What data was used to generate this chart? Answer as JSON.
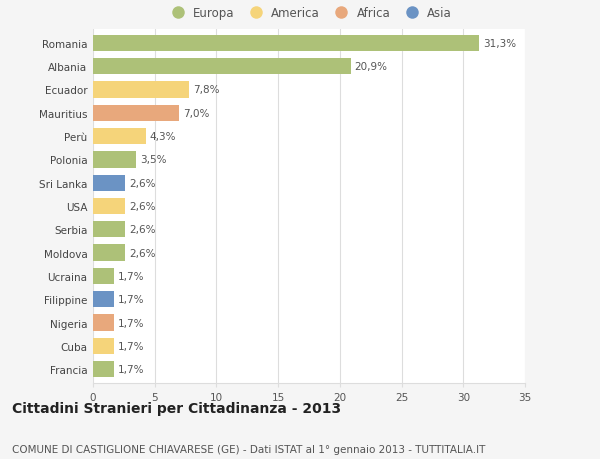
{
  "countries": [
    "Francia",
    "Cuba",
    "Nigeria",
    "Filippine",
    "Ucraina",
    "Moldova",
    "Serbia",
    "USA",
    "Sri Lanka",
    "Polonia",
    "Perù",
    "Mauritius",
    "Ecuador",
    "Albania",
    "Romania"
  ],
  "values": [
    1.7,
    1.7,
    1.7,
    1.7,
    1.7,
    2.6,
    2.6,
    2.6,
    2.6,
    3.5,
    4.3,
    7.0,
    7.8,
    20.9,
    31.3
  ],
  "labels": [
    "1,7%",
    "1,7%",
    "1,7%",
    "1,7%",
    "1,7%",
    "2,6%",
    "2,6%",
    "2,6%",
    "2,6%",
    "3,5%",
    "4,3%",
    "7,0%",
    "7,8%",
    "20,9%",
    "31,3%"
  ],
  "continents": [
    "Europa",
    "America",
    "Africa",
    "Asia",
    "Europa",
    "Europa",
    "Europa",
    "America",
    "Asia",
    "Europa",
    "America",
    "Africa",
    "America",
    "Europa",
    "Europa"
  ],
  "continent_colors": {
    "Europa": "#adc178",
    "America": "#f5d47a",
    "Africa": "#e8a87c",
    "Asia": "#6b93c4"
  },
  "legend_order": [
    "Europa",
    "America",
    "Africa",
    "Asia"
  ],
  "title": "Cittadini Stranieri per Cittadinanza - 2013",
  "subtitle": "COMUNE DI CASTIGLIONE CHIAVARESE (GE) - Dati ISTAT al 1° gennaio 2013 - TUTTITALIA.IT",
  "xlim": [
    0,
    35
  ],
  "xticks": [
    0,
    5,
    10,
    15,
    20,
    25,
    30,
    35
  ],
  "background_color": "#f5f5f5",
  "bar_background": "#ffffff",
  "grid_color": "#dddddd",
  "title_fontsize": 10,
  "subtitle_fontsize": 7.5,
  "label_fontsize": 7.5,
  "tick_fontsize": 7.5,
  "legend_fontsize": 8.5,
  "bar_height": 0.7
}
